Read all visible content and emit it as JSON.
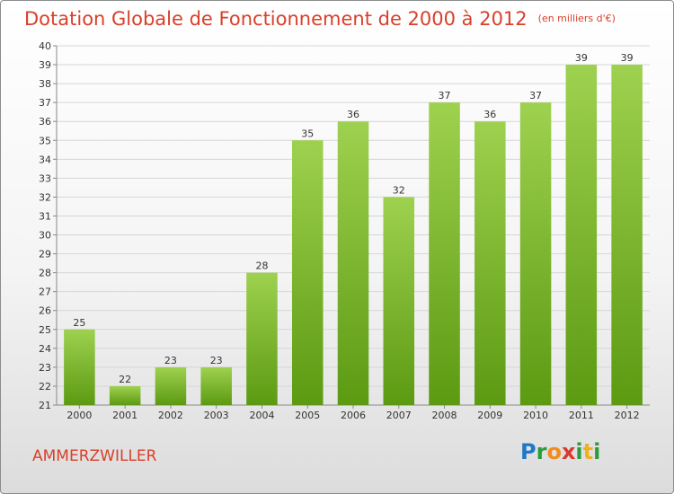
{
  "title": "Dotation Globale de Fonctionnement de 2000 à 2012",
  "subtitle": "(en milliers d'€)",
  "town": "AMMERZWILLER",
  "logo": {
    "p": "P",
    "r": "r",
    "o": "o",
    "x": "x",
    "i": "i",
    "t": "t",
    "i2": "i"
  },
  "colors": {
    "bar_top": "#9ed14f",
    "bar_bottom": "#5c9a12",
    "title": "#d8402b",
    "grid": "#d6d6d6"
  },
  "chart_data": {
    "type": "bar",
    "categories": [
      "2000",
      "2001",
      "2002",
      "2003",
      "2004",
      "2005",
      "2006",
      "2007",
      "2008",
      "2009",
      "2010",
      "2011",
      "2012"
    ],
    "values": [
      25,
      22,
      23,
      23,
      28,
      35,
      36,
      32,
      37,
      36,
      37,
      39,
      39
    ],
    "ylim": [
      21,
      40
    ],
    "yticks": [
      21,
      22,
      23,
      24,
      25,
      26,
      27,
      28,
      29,
      30,
      31,
      32,
      33,
      34,
      35,
      36,
      37,
      38,
      39,
      40
    ],
    "grid": true,
    "title": "Dotation Globale de Fonctionnement de 2000 à 2012",
    "subtitle": "(en milliers d'€)"
  }
}
